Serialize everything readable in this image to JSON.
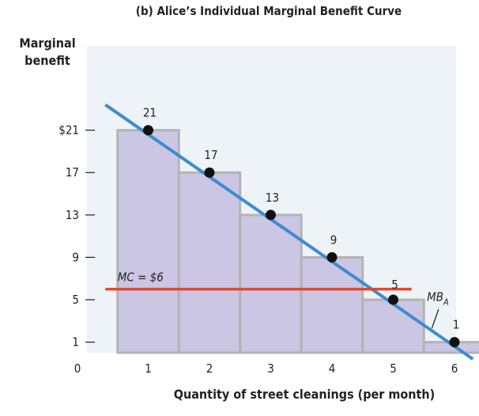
{
  "chart_data": {
    "type": "bar",
    "title": "(b) Alice’s Individual Marginal Benefit Curve",
    "ylabel": [
      "Marginal",
      "benefit"
    ],
    "xlabel": "Quantity of street cleanings (per month)",
    "categories": [
      "1",
      "2",
      "3",
      "4",
      "5",
      "6"
    ],
    "values": [
      21,
      17,
      13,
      9,
      5,
      1
    ],
    "data_labels": [
      "21",
      "17",
      "13",
      "9",
      "5",
      "1"
    ],
    "x_ticks": [
      "0",
      "1",
      "2",
      "3",
      "4",
      "5",
      "6"
    ],
    "y_ticks": [
      {
        "value": 1,
        "label": "1"
      },
      {
        "value": 5,
        "label": "5"
      },
      {
        "value": 9,
        "label": "9"
      },
      {
        "value": 13,
        "label": "13"
      },
      {
        "value": 17,
        "label": "17"
      },
      {
        "value": 21,
        "label": "$21"
      }
    ],
    "xlim": [
      0,
      6.5
    ],
    "ylim": [
      0,
      27
    ],
    "mb_line": {
      "label": "MB",
      "subscript": "A",
      "x": [
        0.3,
        6.3
      ],
      "y": [
        23.4,
        -0.6
      ]
    },
    "mc_line": {
      "label": "MC = $6",
      "value": 6,
      "x": [
        0.3,
        5.3
      ]
    },
    "colors": {
      "bar_fill": "#cbc6e3",
      "bar_stroke": "#b3b3b3",
      "mb_line": "#3d8cd0",
      "mc_line": "#e8462a",
      "point": "#111111",
      "background": "#ffffff",
      "plot_background": "#eef3f8"
    }
  }
}
